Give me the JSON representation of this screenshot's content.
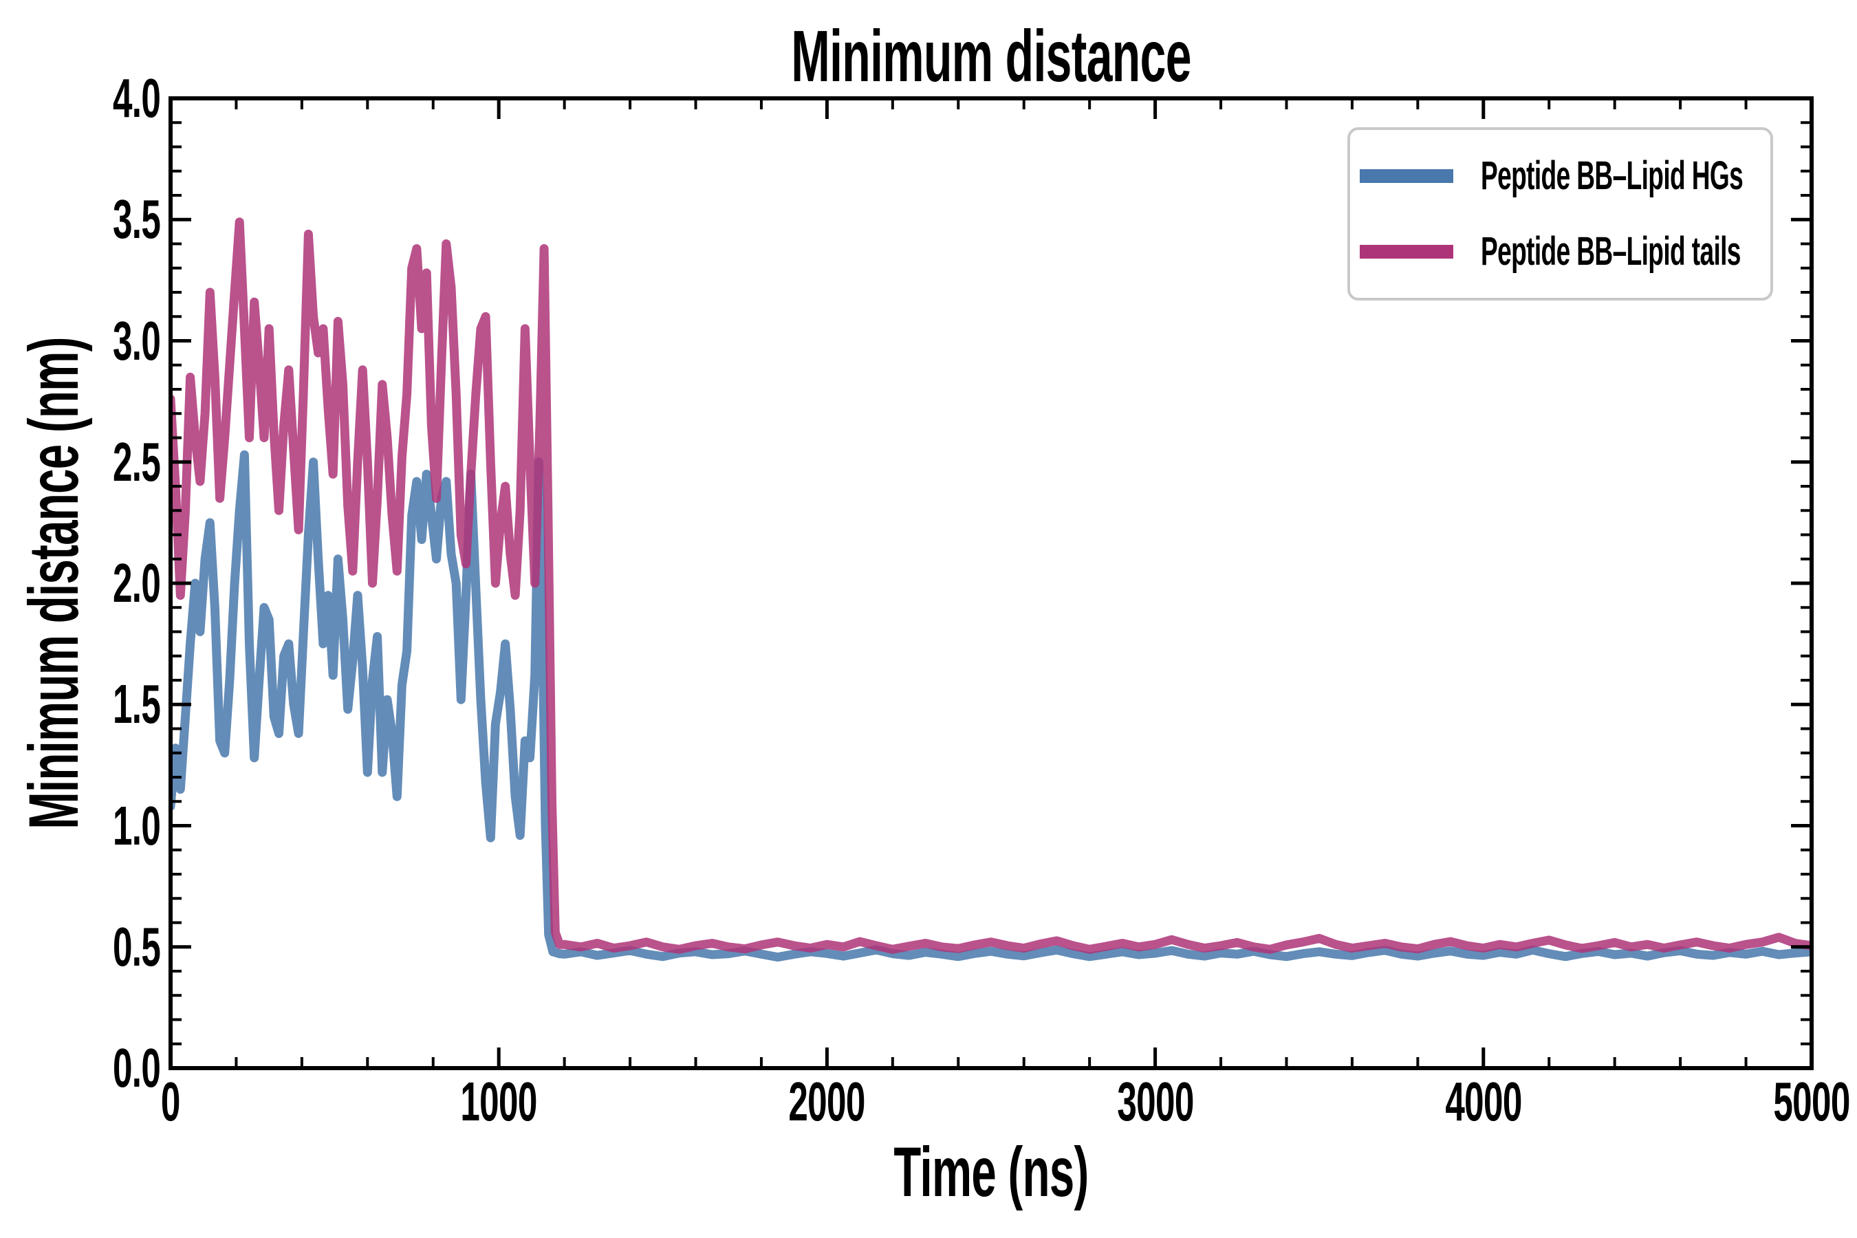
{
  "figure": {
    "background": "#ffffff",
    "text_color": "#000000"
  },
  "chart_data": {
    "type": "line",
    "title": "Minimum distance",
    "xlabel": "Time (ns)",
    "ylabel": "Minimum distance (nm)",
    "xlim": [
      0,
      5000
    ],
    "ylim": [
      0.0,
      4.0
    ],
    "grid": false,
    "legend_position": "upper right",
    "legend_border_color": "#c9c9c9",
    "axis_color": "#000000",
    "x_ticks": [
      {
        "t": 0,
        "label": "0"
      },
      {
        "t": 1000,
        "label": "1000"
      },
      {
        "t": 2000,
        "label": "2000"
      },
      {
        "t": 3000,
        "label": "3000"
      },
      {
        "t": 4000,
        "label": "4000"
      },
      {
        "t": 5000,
        "label": "5000"
      }
    ],
    "x_minor_step": 200,
    "y_ticks": [
      {
        "v": 0.0,
        "label": "0.0"
      },
      {
        "v": 0.5,
        "label": "0.5"
      },
      {
        "v": 1.0,
        "label": "1.0"
      },
      {
        "v": 1.5,
        "label": "1.5"
      },
      {
        "v": 2.0,
        "label": "2.0"
      },
      {
        "v": 2.5,
        "label": "2.5"
      },
      {
        "v": 3.0,
        "label": "3.0"
      },
      {
        "v": 3.5,
        "label": "3.5"
      },
      {
        "v": 4.0,
        "label": "4.0"
      }
    ],
    "y_minor_step": 0.1,
    "series": [
      {
        "name": "Peptide BB–Lipid HGs",
        "color": "#4878AC",
        "opacity": 0.85,
        "linewidth": 13,
        "points": [
          [
            0,
            1.08
          ],
          [
            15,
            1.32
          ],
          [
            30,
            1.15
          ],
          [
            45,
            1.45
          ],
          [
            60,
            1.75
          ],
          [
            75,
            2.0
          ],
          [
            90,
            1.8
          ],
          [
            105,
            2.1
          ],
          [
            120,
            2.25
          ],
          [
            135,
            1.9
          ],
          [
            150,
            1.35
          ],
          [
            165,
            1.3
          ],
          [
            180,
            1.6
          ],
          [
            195,
            2.0
          ],
          [
            210,
            2.3
          ],
          [
            225,
            2.53
          ],
          [
            240,
            1.75
          ],
          [
            255,
            1.28
          ],
          [
            270,
            1.6
          ],
          [
            285,
            1.9
          ],
          [
            300,
            1.85
          ],
          [
            315,
            1.45
          ],
          [
            330,
            1.38
          ],
          [
            345,
            1.7
          ],
          [
            360,
            1.75
          ],
          [
            375,
            1.5
          ],
          [
            390,
            1.38
          ],
          [
            405,
            1.8
          ],
          [
            420,
            2.2
          ],
          [
            435,
            2.5
          ],
          [
            450,
            2.1
          ],
          [
            465,
            1.75
          ],
          [
            480,
            1.95
          ],
          [
            495,
            1.62
          ],
          [
            510,
            2.1
          ],
          [
            525,
            1.85
          ],
          [
            540,
            1.48
          ],
          [
            555,
            1.68
          ],
          [
            570,
            1.95
          ],
          [
            585,
            1.65
          ],
          [
            600,
            1.22
          ],
          [
            615,
            1.6
          ],
          [
            630,
            1.78
          ],
          [
            645,
            1.22
          ],
          [
            660,
            1.52
          ],
          [
            675,
            1.38
          ],
          [
            690,
            1.12
          ],
          [
            705,
            1.58
          ],
          [
            720,
            1.72
          ],
          [
            735,
            2.28
          ],
          [
            750,
            2.42
          ],
          [
            765,
            2.18
          ],
          [
            780,
            2.45
          ],
          [
            795,
            2.28
          ],
          [
            810,
            2.1
          ],
          [
            825,
            2.35
          ],
          [
            840,
            2.42
          ],
          [
            855,
            2.12
          ],
          [
            870,
            2.0
          ],
          [
            885,
            1.52
          ],
          [
            900,
            1.95
          ],
          [
            915,
            2.45
          ],
          [
            930,
            1.98
          ],
          [
            945,
            1.52
          ],
          [
            960,
            1.18
          ],
          [
            975,
            0.95
          ],
          [
            990,
            1.42
          ],
          [
            1005,
            1.55
          ],
          [
            1020,
            1.75
          ],
          [
            1035,
            1.48
          ],
          [
            1050,
            1.12
          ],
          [
            1065,
            0.96
          ],
          [
            1080,
            1.35
          ],
          [
            1095,
            1.28
          ],
          [
            1110,
            1.62
          ],
          [
            1122,
            2.5
          ],
          [
            1132,
            1.9
          ],
          [
            1142,
            1.0
          ],
          [
            1152,
            0.55
          ],
          [
            1165,
            0.48
          ],
          [
            1185,
            0.472
          ]
        ],
        "tail": {
          "t0": 1200,
          "dt": 50,
          "values": [
            0.47,
            0.48,
            0.465,
            0.475,
            0.485,
            0.47,
            0.46,
            0.475,
            0.48,
            0.468,
            0.472,
            0.483,
            0.47,
            0.458,
            0.47,
            0.48,
            0.473,
            0.462,
            0.475,
            0.488,
            0.472,
            0.465,
            0.478,
            0.47,
            0.46,
            0.473,
            0.482,
            0.47,
            0.463,
            0.476,
            0.487,
            0.472,
            0.46,
            0.47,
            0.48,
            0.468,
            0.474,
            0.485,
            0.47,
            0.462,
            0.475,
            0.47,
            0.482,
            0.468,
            0.46,
            0.472,
            0.48,
            0.47,
            0.464,
            0.477,
            0.486,
            0.47,
            0.462,
            0.474,
            0.483,
            0.47,
            0.465,
            0.478,
            0.47,
            0.487,
            0.472,
            0.46,
            0.473,
            0.481,
            0.468,
            0.474,
            0.462,
            0.476,
            0.484,
            0.47,
            0.465,
            0.477,
            0.47,
            0.482,
            0.468,
            0.475,
            0.48
          ]
        }
      },
      {
        "name": "Peptide BB–Lipid tails",
        "color": "#AE3478",
        "opacity": 0.85,
        "linewidth": 13,
        "points": [
          [
            0,
            2.76
          ],
          [
            15,
            2.4
          ],
          [
            30,
            1.95
          ],
          [
            45,
            2.3
          ],
          [
            60,
            2.85
          ],
          [
            75,
            2.6
          ],
          [
            90,
            2.42
          ],
          [
            105,
            2.7
          ],
          [
            120,
            3.2
          ],
          [
            135,
            2.85
          ],
          [
            150,
            2.35
          ],
          [
            165,
            2.6
          ],
          [
            180,
            2.9
          ],
          [
            195,
            3.2
          ],
          [
            210,
            3.49
          ],
          [
            225,
            3.05
          ],
          [
            240,
            2.6
          ],
          [
            255,
            3.16
          ],
          [
            270,
            2.9
          ],
          [
            285,
            2.6
          ],
          [
            300,
            3.05
          ],
          [
            315,
            2.62
          ],
          [
            330,
            2.3
          ],
          [
            345,
            2.65
          ],
          [
            360,
            2.88
          ],
          [
            375,
            2.55
          ],
          [
            390,
            2.22
          ],
          [
            405,
            2.8
          ],
          [
            420,
            3.44
          ],
          [
            435,
            3.1
          ],
          [
            450,
            2.95
          ],
          [
            465,
            3.05
          ],
          [
            480,
            2.72
          ],
          [
            495,
            2.45
          ],
          [
            510,
            3.08
          ],
          [
            525,
            2.82
          ],
          [
            540,
            2.32
          ],
          [
            555,
            2.05
          ],
          [
            570,
            2.5
          ],
          [
            585,
            2.88
          ],
          [
            600,
            2.5
          ],
          [
            615,
            2.0
          ],
          [
            630,
            2.35
          ],
          [
            645,
            2.82
          ],
          [
            660,
            2.6
          ],
          [
            675,
            2.28
          ],
          [
            690,
            2.05
          ],
          [
            705,
            2.52
          ],
          [
            720,
            2.78
          ],
          [
            735,
            3.3
          ],
          [
            750,
            3.38
          ],
          [
            765,
            3.05
          ],
          [
            780,
            3.28
          ],
          [
            795,
            2.65
          ],
          [
            810,
            2.35
          ],
          [
            825,
            2.9
          ],
          [
            840,
            3.4
          ],
          [
            855,
            3.22
          ],
          [
            870,
            2.78
          ],
          [
            885,
            2.2
          ],
          [
            900,
            2.08
          ],
          [
            915,
            2.45
          ],
          [
            930,
            2.78
          ],
          [
            945,
            3.05
          ],
          [
            960,
            3.1
          ],
          [
            975,
            2.5
          ],
          [
            990,
            2.0
          ],
          [
            1005,
            2.25
          ],
          [
            1020,
            2.4
          ],
          [
            1035,
            2.12
          ],
          [
            1050,
            1.95
          ],
          [
            1065,
            2.3
          ],
          [
            1080,
            3.05
          ],
          [
            1095,
            2.5
          ],
          [
            1110,
            2.0
          ],
          [
            1125,
            2.65
          ],
          [
            1138,
            3.38
          ],
          [
            1150,
            2.3
          ],
          [
            1162,
            1.1
          ],
          [
            1172,
            0.56
          ],
          [
            1185,
            0.51
          ]
        ],
        "tail": {
          "t0": 1200,
          "dt": 50,
          "values": [
            0.51,
            0.5,
            0.515,
            0.495,
            0.505,
            0.52,
            0.5,
            0.49,
            0.505,
            0.515,
            0.5,
            0.492,
            0.508,
            0.52,
            0.505,
            0.495,
            0.51,
            0.5,
            0.522,
            0.505,
            0.49,
            0.503,
            0.515,
            0.5,
            0.493,
            0.508,
            0.52,
            0.505,
            0.495,
            0.512,
            0.525,
            0.505,
            0.49,
            0.502,
            0.515,
            0.5,
            0.51,
            0.53,
            0.51,
            0.495,
            0.505,
            0.518,
            0.5,
            0.49,
            0.508,
            0.52,
            0.535,
            0.51,
            0.495,
            0.505,
            0.515,
            0.5,
            0.492,
            0.51,
            0.522,
            0.505,
            0.495,
            0.51,
            0.5,
            0.515,
            0.528,
            0.508,
            0.494,
            0.505,
            0.518,
            0.5,
            0.51,
            0.495,
            0.508,
            0.52,
            0.505,
            0.495,
            0.51,
            0.52,
            0.54,
            0.515,
            0.505
          ]
        }
      }
    ]
  }
}
